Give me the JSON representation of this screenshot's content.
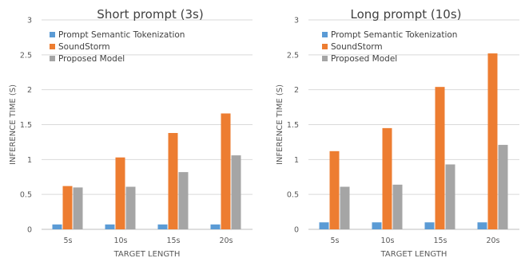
{
  "chart_data": [
    {
      "type": "bar",
      "title": "Short prompt (3s)",
      "xlabel": "TARGET LENGTH",
      "ylabel": "INFERENCE TIME (S)",
      "ylim": [
        0,
        3
      ],
      "yticks": [
        "0",
        "0.5",
        "1",
        "1.5",
        "2",
        "2.5",
        "3"
      ],
      "grid": true,
      "legend_position": "top-left",
      "categories": [
        "5s",
        "10s",
        "15s",
        "20s"
      ],
      "series": [
        {
          "name": "Prompt Semantic Tokenization",
          "color": "#5B9BD5",
          "values": [
            0.07,
            0.07,
            0.07,
            0.07
          ]
        },
        {
          "name": "SoundStorm",
          "color": "#ED7D31",
          "values": [
            0.62,
            1.03,
            1.38,
            1.66
          ]
        },
        {
          "name": "Proposed Model",
          "color": "#A5A5A5",
          "values": [
            0.6,
            0.61,
            0.82,
            1.06
          ]
        }
      ]
    },
    {
      "type": "bar",
      "title": "Long prompt (10s)",
      "xlabel": "TARGET LENGTH",
      "ylabel": "INFERENCE TIME (S)",
      "ylim": [
        0,
        3
      ],
      "yticks": [
        "0",
        "0.5",
        "1",
        "1.5",
        "2",
        "2.5",
        "3"
      ],
      "grid": true,
      "legend_position": "top-left",
      "categories": [
        "5s",
        "10s",
        "15s",
        "20s"
      ],
      "series": [
        {
          "name": "Prompt Semantic Tokenization",
          "color": "#5B9BD5",
          "values": [
            0.1,
            0.1,
            0.1,
            0.1
          ]
        },
        {
          "name": "SoundStorm",
          "color": "#ED7D31",
          "values": [
            1.12,
            1.45,
            2.04,
            2.52
          ]
        },
        {
          "name": "Proposed Model",
          "color": "#A5A5A5",
          "values": [
            0.61,
            0.64,
            0.93,
            1.21
          ]
        }
      ]
    }
  ]
}
